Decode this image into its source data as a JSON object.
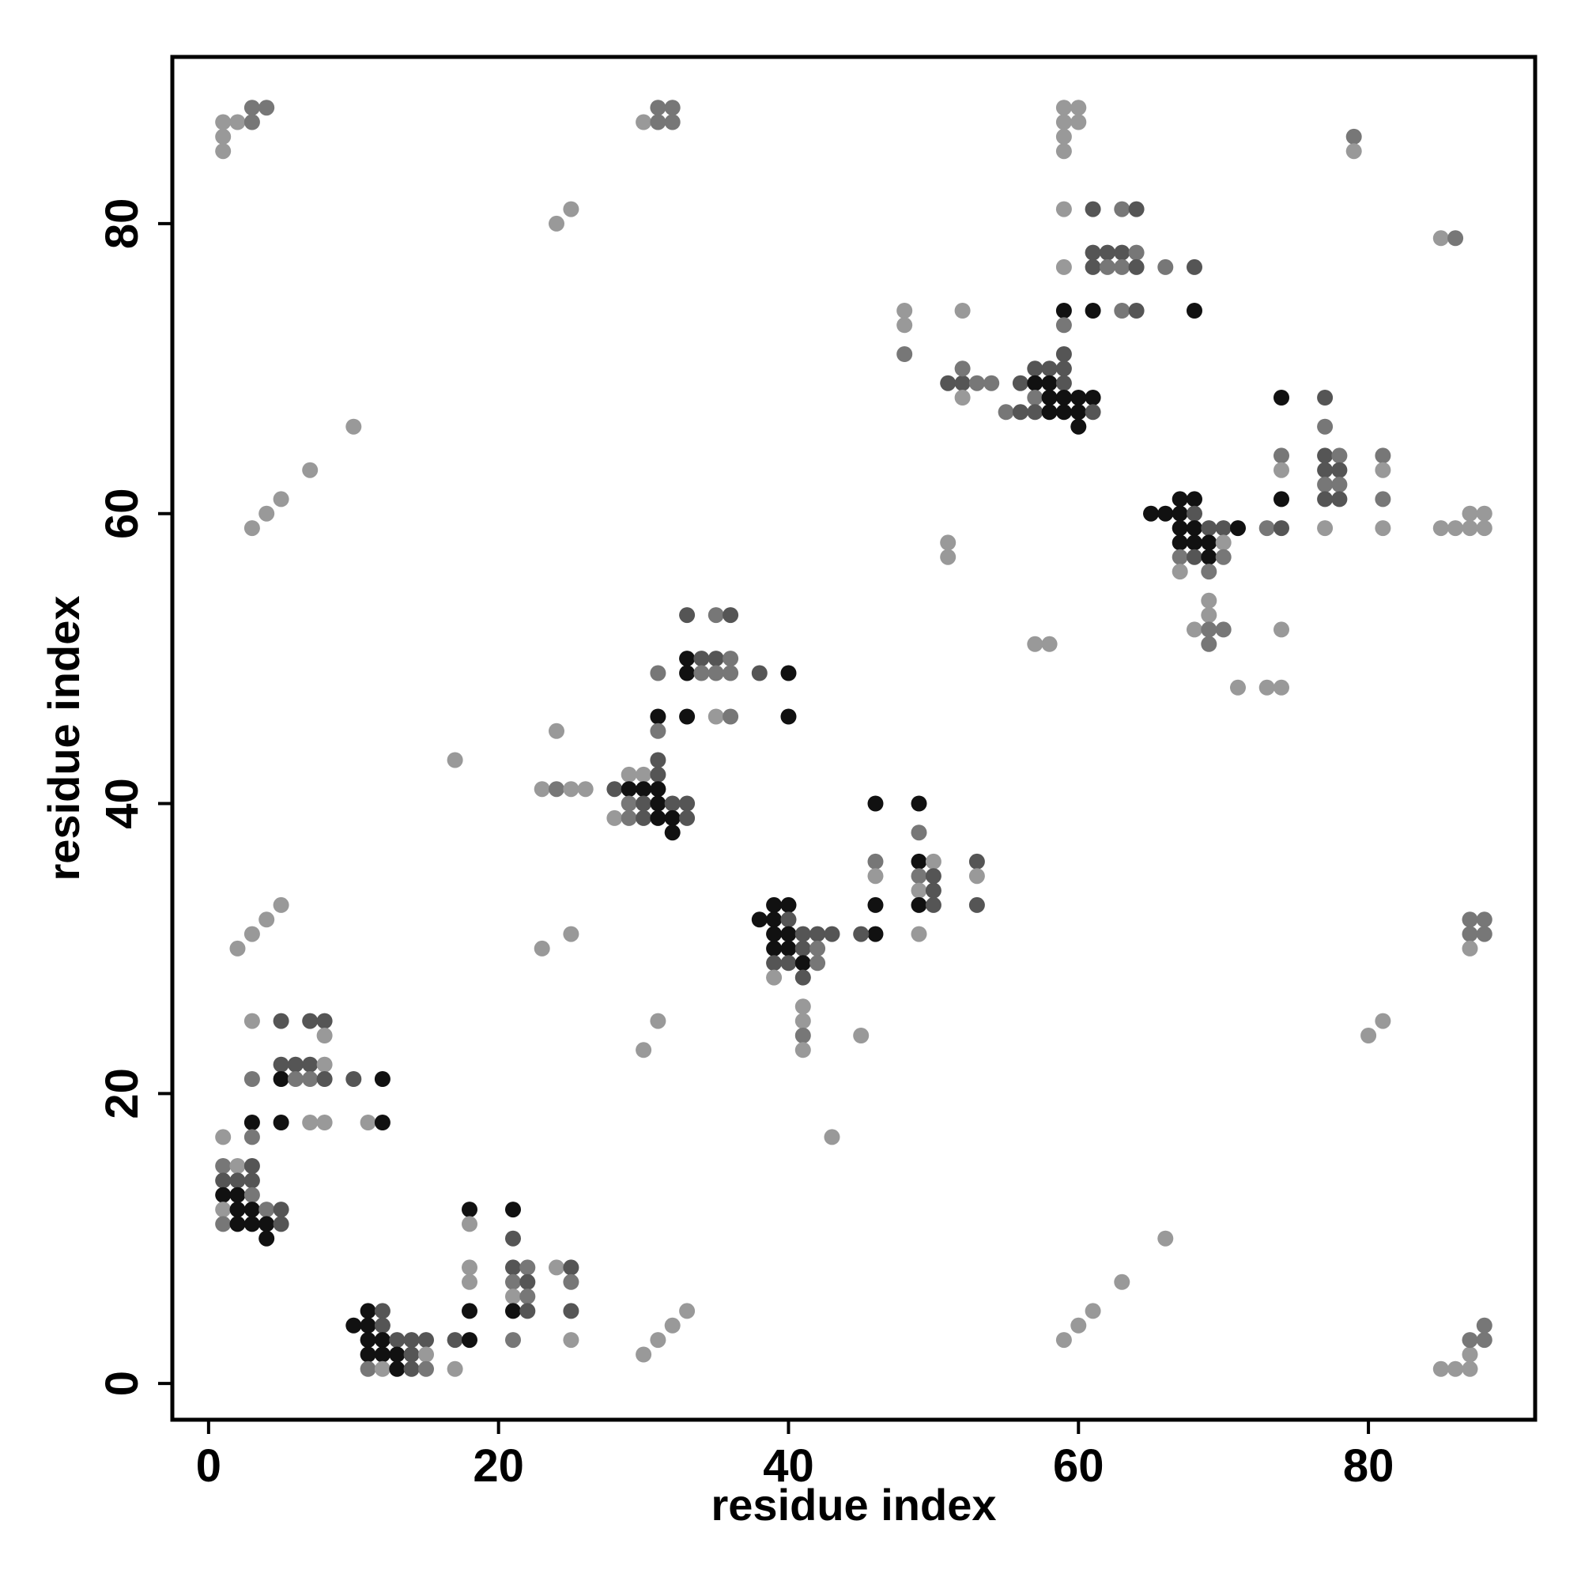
{
  "chart_data": {
    "type": "scatter",
    "title": "",
    "xlabel": "residue index",
    "ylabel": "residue index",
    "xlim": [
      -2.5,
      91.5
    ],
    "ylim": [
      -2.5,
      91.5
    ],
    "xticks": [
      0,
      20,
      40,
      60,
      80
    ],
    "yticks": [
      0,
      20,
      40,
      60,
      80
    ],
    "grid": false,
    "legend": "none",
    "marker_color_scale": {
      "low": "#999999",
      "high": "#111111",
      "note_levels": [
        1,
        2,
        3,
        4
      ]
    },
    "colors": {
      "level_1": "#999999",
      "level_2": "#777777",
      "level_3": "#555555",
      "level_4": "#111111"
    },
    "points": [
      [
        1,
        87,
        1
      ],
      [
        2,
        87,
        1
      ],
      [
        3,
        87,
        2
      ],
      [
        3,
        88,
        2
      ],
      [
        4,
        88,
        2
      ],
      [
        1,
        86,
        1
      ],
      [
        1,
        85,
        1
      ],
      [
        30,
        87,
        1
      ],
      [
        31,
        87,
        2
      ],
      [
        31,
        88,
        2
      ],
      [
        32,
        88,
        2
      ],
      [
        32,
        87,
        2
      ],
      [
        59,
        88,
        1
      ],
      [
        60,
        88,
        1
      ],
      [
        59,
        87,
        1
      ],
      [
        60,
        87,
        1
      ],
      [
        59,
        86,
        1
      ],
      [
        59,
        85,
        1
      ],
      [
        79,
        86,
        2
      ],
      [
        79,
        85,
        1
      ],
      [
        24,
        80,
        1
      ],
      [
        25,
        81,
        1
      ],
      [
        59,
        81,
        1
      ],
      [
        61,
        81,
        3
      ],
      [
        63,
        81,
        2
      ],
      [
        64,
        81,
        3
      ],
      [
        61,
        78,
        3
      ],
      [
        62,
        78,
        3
      ],
      [
        63,
        78,
        3
      ],
      [
        64,
        78,
        2
      ],
      [
        59,
        77,
        1
      ],
      [
        61,
        77,
        3
      ],
      [
        62,
        77,
        2
      ],
      [
        63,
        77,
        2
      ],
      [
        64,
        77,
        3
      ],
      [
        66,
        77,
        2
      ],
      [
        68,
        77,
        3
      ],
      [
        85,
        79,
        1
      ],
      [
        86,
        79,
        2
      ],
      [
        48,
        74,
        1
      ],
      [
        48,
        73,
        1
      ],
      [
        48,
        71,
        2
      ],
      [
        52,
        74,
        1
      ],
      [
        59,
        74,
        4
      ],
      [
        61,
        74,
        4
      ],
      [
        63,
        74,
        2
      ],
      [
        64,
        74,
        3
      ],
      [
        68,
        74,
        4
      ],
      [
        59,
        73,
        2
      ],
      [
        59,
        71,
        3
      ],
      [
        57,
        70,
        3
      ],
      [
        58,
        70,
        3
      ],
      [
        59,
        70,
        3
      ],
      [
        51,
        69,
        3
      ],
      [
        52,
        69,
        3
      ],
      [
        53,
        69,
        2
      ],
      [
        54,
        69,
        2
      ],
      [
        52,
        70,
        2
      ],
      [
        52,
        68,
        1
      ],
      [
        56,
        69,
        3
      ],
      [
        57,
        69,
        4
      ],
      [
        58,
        69,
        4
      ],
      [
        59,
        69,
        3
      ],
      [
        57,
        68,
        2
      ],
      [
        58,
        68,
        4
      ],
      [
        59,
        68,
        4
      ],
      [
        60,
        68,
        4
      ],
      [
        61,
        68,
        4
      ],
      [
        55,
        67,
        2
      ],
      [
        56,
        67,
        3
      ],
      [
        57,
        67,
        3
      ],
      [
        58,
        67,
        4
      ],
      [
        59,
        67,
        4
      ],
      [
        60,
        67,
        4
      ],
      [
        61,
        67,
        3
      ],
      [
        60,
        66,
        4
      ],
      [
        10,
        66,
        1
      ],
      [
        7,
        63,
        1
      ],
      [
        5,
        61,
        1
      ],
      [
        4,
        60,
        1
      ],
      [
        3,
        59,
        1
      ],
      [
        74,
        68,
        4
      ],
      [
        77,
        68,
        3
      ],
      [
        77,
        66,
        2
      ],
      [
        74,
        64,
        2
      ],
      [
        74,
        63,
        1
      ],
      [
        77,
        64,
        3
      ],
      [
        78,
        64,
        2
      ],
      [
        77,
        63,
        3
      ],
      [
        78,
        63,
        3
      ],
      [
        77,
        62,
        2
      ],
      [
        78,
        62,
        2
      ],
      [
        74,
        61,
        4
      ],
      [
        77,
        61,
        3
      ],
      [
        78,
        61,
        3
      ],
      [
        81,
        64,
        2
      ],
      [
        81,
        63,
        1
      ],
      [
        81,
        61,
        2
      ],
      [
        73,
        59,
        2
      ],
      [
        74,
        59,
        3
      ],
      [
        77,
        59,
        1
      ],
      [
        81,
        59,
        1
      ],
      [
        85,
        59,
        1
      ],
      [
        86,
        59,
        1
      ],
      [
        87,
        59,
        1
      ],
      [
        88,
        59,
        1
      ],
      [
        87,
        60,
        1
      ],
      [
        88,
        60,
        1
      ],
      [
        65,
        60,
        4
      ],
      [
        67,
        61,
        4
      ],
      [
        68,
        61,
        4
      ],
      [
        66,
        60,
        4
      ],
      [
        67,
        60,
        4
      ],
      [
        68,
        60,
        3
      ],
      [
        67,
        59,
        4
      ],
      [
        68,
        59,
        4
      ],
      [
        69,
        59,
        3
      ],
      [
        70,
        59,
        3
      ],
      [
        71,
        59,
        4
      ],
      [
        67,
        58,
        4
      ],
      [
        68,
        58,
        4
      ],
      [
        69,
        58,
        4
      ],
      [
        70,
        58,
        1
      ],
      [
        67,
        57,
        2
      ],
      [
        68,
        57,
        3
      ],
      [
        69,
        57,
        4
      ],
      [
        70,
        57,
        2
      ],
      [
        67,
        56,
        1
      ],
      [
        69,
        56,
        2
      ],
      [
        51,
        58,
        1
      ],
      [
        51,
        57,
        1
      ],
      [
        69,
        54,
        1
      ],
      [
        69,
        53,
        1
      ],
      [
        68,
        52,
        1
      ],
      [
        69,
        52,
        2
      ],
      [
        70,
        52,
        2
      ],
      [
        69,
        51,
        2
      ],
      [
        57,
        51,
        1
      ],
      [
        58,
        51,
        1
      ],
      [
        74,
        52,
        1
      ],
      [
        71,
        48,
        1
      ],
      [
        73,
        48,
        1
      ],
      [
        74,
        48,
        1
      ],
      [
        33,
        53,
        3
      ],
      [
        35,
        53,
        2
      ],
      [
        36,
        53,
        3
      ],
      [
        33,
        50,
        4
      ],
      [
        34,
        50,
        3
      ],
      [
        35,
        50,
        3
      ],
      [
        36,
        50,
        2
      ],
      [
        31,
        49,
        2
      ],
      [
        33,
        49,
        4
      ],
      [
        34,
        49,
        2
      ],
      [
        35,
        49,
        2
      ],
      [
        36,
        49,
        2
      ],
      [
        38,
        49,
        3
      ],
      [
        40,
        49,
        4
      ],
      [
        31,
        46,
        4
      ],
      [
        33,
        46,
        4
      ],
      [
        35,
        46,
        1
      ],
      [
        36,
        46,
        2
      ],
      [
        40,
        46,
        4
      ],
      [
        31,
        45,
        2
      ],
      [
        24,
        45,
        1
      ],
      [
        17,
        43,
        1
      ],
      [
        31,
        43,
        3
      ],
      [
        23,
        41,
        1
      ],
      [
        24,
        41,
        2
      ],
      [
        25,
        41,
        1
      ],
      [
        26,
        41,
        1
      ],
      [
        29,
        42,
        1
      ],
      [
        30,
        42,
        1
      ],
      [
        31,
        42,
        3
      ],
      [
        28,
        41,
        3
      ],
      [
        29,
        41,
        4
      ],
      [
        30,
        41,
        4
      ],
      [
        31,
        41,
        4
      ],
      [
        29,
        40,
        2
      ],
      [
        30,
        40,
        3
      ],
      [
        31,
        40,
        4
      ],
      [
        32,
        40,
        3
      ],
      [
        33,
        40,
        3
      ],
      [
        28,
        39,
        1
      ],
      [
        29,
        39,
        2
      ],
      [
        30,
        39,
        3
      ],
      [
        31,
        39,
        4
      ],
      [
        32,
        39,
        4
      ],
      [
        33,
        39,
        3
      ],
      [
        32,
        38,
        4
      ],
      [
        46,
        40,
        4
      ],
      [
        49,
        40,
        4
      ],
      [
        49,
        38,
        2
      ],
      [
        46,
        36,
        2
      ],
      [
        49,
        36,
        4
      ],
      [
        50,
        36,
        1
      ],
      [
        53,
        36,
        3
      ],
      [
        46,
        35,
        1
      ],
      [
        49,
        35,
        2
      ],
      [
        50,
        35,
        3
      ],
      [
        53,
        35,
        1
      ],
      [
        49,
        34,
        1
      ],
      [
        50,
        34,
        3
      ],
      [
        46,
        33,
        4
      ],
      [
        49,
        33,
        4
      ],
      [
        50,
        33,
        3
      ],
      [
        53,
        33,
        3
      ],
      [
        46,
        31,
        4
      ],
      [
        45,
        31,
        3
      ],
      [
        49,
        31,
        1
      ],
      [
        38,
        32,
        4
      ],
      [
        39,
        33,
        4
      ],
      [
        40,
        33,
        4
      ],
      [
        39,
        32,
        4
      ],
      [
        40,
        32,
        3
      ],
      [
        39,
        31,
        4
      ],
      [
        40,
        31,
        4
      ],
      [
        41,
        31,
        3
      ],
      [
        42,
        31,
        3
      ],
      [
        43,
        31,
        3
      ],
      [
        39,
        30,
        4
      ],
      [
        40,
        30,
        4
      ],
      [
        41,
        30,
        3
      ],
      [
        42,
        30,
        2
      ],
      [
        39,
        29,
        3
      ],
      [
        40,
        29,
        3
      ],
      [
        41,
        29,
        4
      ],
      [
        42,
        29,
        2
      ],
      [
        39,
        28,
        1
      ],
      [
        41,
        28,
        3
      ],
      [
        41,
        26,
        1
      ],
      [
        41,
        25,
        1
      ],
      [
        41,
        24,
        2
      ],
      [
        41,
        23,
        1
      ],
      [
        45,
        24,
        1
      ],
      [
        2,
        30,
        1
      ],
      [
        3,
        31,
        1
      ],
      [
        4,
        32,
        1
      ],
      [
        5,
        33,
        1
      ],
      [
        23,
        30,
        1
      ],
      [
        25,
        31,
        1
      ],
      [
        87,
        32,
        2
      ],
      [
        88,
        32,
        2
      ],
      [
        87,
        31,
        2
      ],
      [
        88,
        31,
        2
      ],
      [
        87,
        30,
        1
      ],
      [
        31,
        25,
        1
      ],
      [
        30,
        23,
        1
      ],
      [
        81,
        25,
        1
      ],
      [
        80,
        24,
        1
      ],
      [
        43,
        17,
        1
      ],
      [
        3,
        25,
        1
      ],
      [
        5,
        25,
        3
      ],
      [
        7,
        25,
        3
      ],
      [
        8,
        25,
        3
      ],
      [
        8,
        24,
        1
      ],
      [
        5,
        22,
        3
      ],
      [
        6,
        22,
        3
      ],
      [
        7,
        22,
        3
      ],
      [
        8,
        22,
        1
      ],
      [
        3,
        21,
        2
      ],
      [
        5,
        21,
        4
      ],
      [
        6,
        21,
        2
      ],
      [
        7,
        21,
        2
      ],
      [
        8,
        21,
        3
      ],
      [
        10,
        21,
        3
      ],
      [
        12,
        21,
        4
      ],
      [
        3,
        18,
        4
      ],
      [
        5,
        18,
        4
      ],
      [
        7,
        18,
        1
      ],
      [
        8,
        18,
        1
      ],
      [
        11,
        18,
        1
      ],
      [
        12,
        18,
        4
      ],
      [
        3,
        17,
        2
      ],
      [
        1,
        17,
        1
      ],
      [
        1,
        15,
        2
      ],
      [
        2,
        15,
        1
      ],
      [
        3,
        15,
        3
      ],
      [
        1,
        14,
        3
      ],
      [
        2,
        14,
        3
      ],
      [
        3,
        14,
        3
      ],
      [
        1,
        13,
        4
      ],
      [
        2,
        13,
        4
      ],
      [
        3,
        13,
        2
      ],
      [
        1,
        12,
        1
      ],
      [
        2,
        12,
        4
      ],
      [
        3,
        12,
        4
      ],
      [
        4,
        12,
        2
      ],
      [
        5,
        12,
        3
      ],
      [
        1,
        11,
        2
      ],
      [
        2,
        11,
        4
      ],
      [
        3,
        11,
        4
      ],
      [
        4,
        11,
        4
      ],
      [
        5,
        11,
        3
      ],
      [
        4,
        10,
        4
      ],
      [
        18,
        12,
        4
      ],
      [
        21,
        12,
        4
      ],
      [
        18,
        11,
        1
      ],
      [
        21,
        10,
        3
      ],
      [
        18,
        8,
        1
      ],
      [
        18,
        7,
        1
      ],
      [
        21,
        8,
        3
      ],
      [
        22,
        8,
        2
      ],
      [
        21,
        7,
        2
      ],
      [
        22,
        7,
        3
      ],
      [
        21,
        6,
        1
      ],
      [
        22,
        6,
        2
      ],
      [
        24,
        8,
        1
      ],
      [
        25,
        8,
        3
      ],
      [
        25,
        7,
        2
      ],
      [
        18,
        5,
        4
      ],
      [
        21,
        5,
        4
      ],
      [
        22,
        5,
        3
      ],
      [
        25,
        5,
        3
      ],
      [
        17,
        3,
        3
      ],
      [
        18,
        3,
        4
      ],
      [
        21,
        3,
        2
      ],
      [
        25,
        3,
        1
      ],
      [
        10,
        4,
        4
      ],
      [
        11,
        5,
        4
      ],
      [
        12,
        5,
        3
      ],
      [
        11,
        4,
        4
      ],
      [
        12,
        4,
        3
      ],
      [
        11,
        3,
        4
      ],
      [
        12,
        3,
        4
      ],
      [
        13,
        3,
        3
      ],
      [
        14,
        3,
        3
      ],
      [
        15,
        3,
        3
      ],
      [
        11,
        2,
        4
      ],
      [
        12,
        2,
        4
      ],
      [
        13,
        2,
        4
      ],
      [
        14,
        2,
        3
      ],
      [
        15,
        2,
        1
      ],
      [
        11,
        1,
        2
      ],
      [
        12,
        1,
        1
      ],
      [
        13,
        1,
        4
      ],
      [
        14,
        1,
        3
      ],
      [
        15,
        1,
        2
      ],
      [
        17,
        1,
        1
      ],
      [
        30,
        2,
        1
      ],
      [
        31,
        3,
        1
      ],
      [
        32,
        4,
        1
      ],
      [
        33,
        5,
        1
      ],
      [
        59,
        3,
        1
      ],
      [
        60,
        4,
        1
      ],
      [
        61,
        5,
        1
      ],
      [
        63,
        7,
        1
      ],
      [
        66,
        10,
        1
      ],
      [
        85,
        1,
        1
      ],
      [
        86,
        1,
        1
      ],
      [
        87,
        1,
        1
      ],
      [
        87,
        2,
        1
      ],
      [
        87,
        3,
        2
      ],
      [
        88,
        3,
        2
      ],
      [
        88,
        4,
        2
      ]
    ]
  }
}
